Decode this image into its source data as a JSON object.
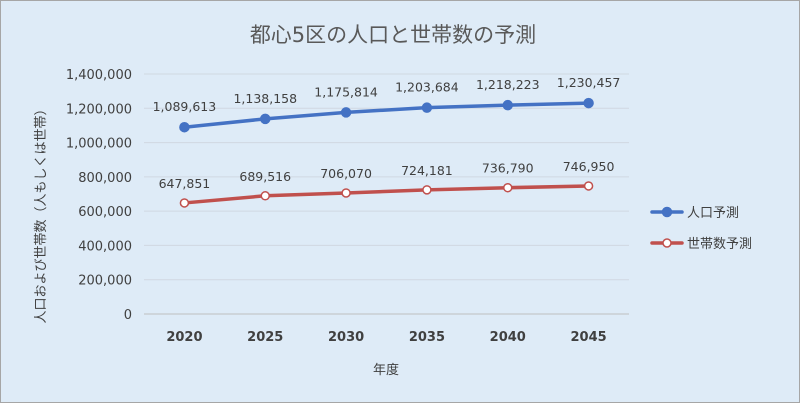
{
  "chart_data": {
    "type": "line",
    "title": "都心5区の人口と世帯数の予測",
    "xlabel": "年度",
    "ylabel": "人口および世帯数（人もしくは世帯）",
    "categories": [
      "2020",
      "2025",
      "2030",
      "2035",
      "2040",
      "2045"
    ],
    "ylim": [
      0,
      1400000
    ],
    "yticks": [
      0,
      200000,
      400000,
      600000,
      800000,
      1000000,
      1200000,
      1400000
    ],
    "ytick_labels": [
      "0",
      "200,000",
      "400,000",
      "600,000",
      "800,000",
      "1,000,000",
      "1,200,000",
      "1,400,000"
    ],
    "grid": true,
    "legend_position": "right",
    "series": [
      {
        "name": "人口予測",
        "color": "#4472c4",
        "marker": "filled-circle",
        "values": [
          1089613,
          1138158,
          1175814,
          1203684,
          1218223,
          1230457
        ],
        "labels": [
          "1,089,613",
          "1,138,158",
          "1,175,814",
          "1,203,684",
          "1,218,223",
          "1,230,457"
        ]
      },
      {
        "name": "世帯数予測",
        "color": "#c0504d",
        "marker": "hollow-circle",
        "values": [
          647851,
          689516,
          706070,
          724181,
          736790,
          746950
        ],
        "labels": [
          "647,851",
          "689,516",
          "706,070",
          "724,181",
          "736,790",
          "746,950"
        ]
      }
    ]
  }
}
